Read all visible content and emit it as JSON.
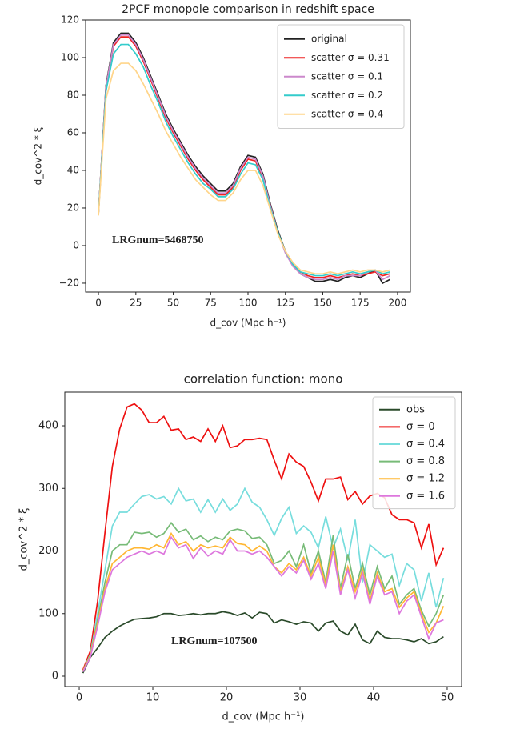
{
  "chart_data": [
    {
      "type": "line",
      "title": "2PCF monopole comparison in redshift space",
      "xlabel": "d_cov (Mpc h⁻¹)",
      "ylabel": "d_cov^2 * ξ",
      "annotation": "LRGnum=5468750",
      "x": [
        0,
        5,
        10,
        15,
        20,
        25,
        30,
        35,
        40,
        45,
        50,
        55,
        60,
        65,
        70,
        75,
        80,
        85,
        90,
        95,
        100,
        105,
        110,
        115,
        120,
        125,
        130,
        135,
        140,
        145,
        150,
        155,
        160,
        165,
        170,
        175,
        180,
        185,
        190,
        195
      ],
      "series": [
        {
          "name": "original",
          "color": "#222222",
          "values": [
            17,
            85,
            108,
            113,
            113,
            108,
            100,
            90,
            80,
            70,
            62,
            55,
            48,
            42,
            37,
            33,
            29,
            29,
            33,
            42,
            48,
            47,
            38,
            22,
            8,
            -3,
            -10,
            -15,
            -17,
            -19,
            -19,
            -18,
            -19,
            -17,
            -16,
            -17,
            -15,
            -13,
            -20,
            -18
          ]
        },
        {
          "name": "scatter σ = 0.31",
          "color": "#ee2222",
          "values": [
            17,
            84,
            106,
            111,
            111,
            106,
            98,
            88,
            78,
            68,
            60,
            53,
            46,
            40,
            35,
            31,
            27,
            27,
            31,
            40,
            46,
            45,
            36,
            21,
            7,
            -3,
            -10,
            -14,
            -16,
            -17,
            -17,
            -16,
            -17,
            -16,
            -15,
            -16,
            -15,
            -14,
            -16,
            -15
          ]
        },
        {
          "name": "scatter σ = 0.1",
          "color": "#cc88cc",
          "values": [
            17,
            84,
            107,
            112,
            112,
            107,
            99,
            89,
            79,
            69,
            61,
            54,
            47,
            41,
            36,
            32,
            28,
            28,
            32,
            41,
            47,
            46,
            37,
            21,
            7,
            -4,
            -11,
            -15,
            -17,
            -18,
            -18,
            -17,
            -18,
            -16,
            -16,
            -16,
            -14,
            -13,
            -18,
            -16
          ]
        },
        {
          "name": "scatter σ = 0.2",
          "color": "#33cccc",
          "values": [
            17,
            82,
            102,
            107,
            107,
            102,
            95,
            85,
            76,
            66,
            58,
            51,
            44,
            38,
            33,
            30,
            26,
            26,
            30,
            38,
            44,
            43,
            35,
            20,
            7,
            -3,
            -10,
            -14,
            -15,
            -16,
            -16,
            -15,
            -16,
            -15,
            -14,
            -15,
            -14,
            -13,
            -15,
            -14
          ]
        },
        {
          "name": "scatter σ = 0.4",
          "color": "#ffd58a",
          "values": [
            16,
            78,
            93,
            97,
            97,
            93,
            86,
            78,
            70,
            61,
            54,
            47,
            41,
            35,
            31,
            27,
            24,
            24,
            28,
            35,
            40,
            40,
            32,
            19,
            6,
            -3,
            -9,
            -13,
            -14,
            -15,
            -15,
            -14,
            -15,
            -14,
            -13,
            -14,
            -13,
            -13,
            -14,
            -13
          ]
        }
      ],
      "xlim": [
        -8.6,
        208.6
      ],
      "ylim": [
        -24.7,
        120
      ],
      "xticks": [
        0,
        25,
        50,
        75,
        100,
        125,
        150,
        175,
        200
      ],
      "yticks": [
        {
          "value": -20,
          "label": "−20"
        },
        0,
        20,
        40,
        60,
        80,
        100,
        120
      ],
      "legend": "upper right",
      "grid": false
    },
    {
      "type": "line",
      "title": "correlation function: mono",
      "xlabel": "d_cov (Mpc h⁻¹)",
      "ylabel": "d_cov^2 * ξ",
      "annotation": "LRGnum=107500",
      "x": [
        0.5,
        1.5,
        2.5,
        3.5,
        4.5,
        5.5,
        6.5,
        7.5,
        8.5,
        9.5,
        10.5,
        11.5,
        12.5,
        13.5,
        14.5,
        15.5,
        16.5,
        17.5,
        18.5,
        19.5,
        20.5,
        21.5,
        22.5,
        23.5,
        24.5,
        25.5,
        26.5,
        27.5,
        28.5,
        29.5,
        30.5,
        31.5,
        32.5,
        33.5,
        34.5,
        35.5,
        36.5,
        37.5,
        38.5,
        39.5,
        40.5,
        41.5,
        42.5,
        43.5,
        44.5,
        45.5,
        46.5,
        47.5,
        48.5,
        49.5
      ],
      "series": [
        {
          "name": "obs",
          "color": "#2a4a2a",
          "values": [
            5,
            30,
            45,
            62,
            72,
            80,
            86,
            91,
            92,
            93,
            95,
            100,
            100,
            97,
            98,
            100,
            98,
            100,
            100,
            103,
            101,
            97,
            101,
            93,
            102,
            100,
            85,
            90,
            87,
            83,
            87,
            85,
            72,
            85,
            88,
            72,
            66,
            83,
            58,
            52,
            72,
            62,
            60,
            60,
            58,
            55,
            60,
            52,
            55,
            63
          ]
        },
        {
          "name": "σ = 0",
          "color": "#ee1111",
          "values": [
            10,
            40,
            120,
            230,
            335,
            395,
            430,
            435,
            425,
            405,
            405,
            415,
            393,
            395,
            378,
            382,
            375,
            395,
            375,
            400,
            365,
            368,
            378,
            378,
            380,
            378,
            345,
            315,
            355,
            342,
            335,
            310,
            280,
            315,
            315,
            318,
            282,
            295,
            275,
            288,
            292,
            285,
            258,
            250,
            250,
            245,
            205,
            243,
            178,
            205
          ]
        },
        {
          "name": "σ = 0.4",
          "color": "#77dddd",
          "values": [
            8,
            35,
            100,
            170,
            240,
            262,
            262,
            275,
            287,
            290,
            283,
            287,
            275,
            300,
            280,
            283,
            262,
            282,
            262,
            283,
            265,
            275,
            300,
            278,
            270,
            250,
            225,
            252,
            270,
            228,
            240,
            230,
            205,
            255,
            205,
            235,
            185,
            250,
            150,
            210,
            200,
            190,
            195,
            145,
            180,
            170,
            120,
            165,
            110,
            157
          ]
        },
        {
          "name": "σ = 0.8",
          "color": "#77bb77",
          "values": [
            8,
            33,
            90,
            150,
            200,
            210,
            210,
            230,
            228,
            230,
            222,
            228,
            245,
            230,
            235,
            218,
            224,
            215,
            222,
            218,
            232,
            235,
            232,
            220,
            222,
            210,
            180,
            185,
            200,
            175,
            210,
            165,
            200,
            150,
            225,
            140,
            195,
            140,
            180,
            130,
            175,
            140,
            160,
            115,
            130,
            140,
            105,
            80,
            100,
            130
          ]
        },
        {
          "name": "σ = 1.2",
          "color": "#ffb733",
          "values": [
            8,
            32,
            85,
            140,
            180,
            190,
            200,
            205,
            205,
            203,
            210,
            205,
            228,
            210,
            215,
            200,
            210,
            205,
            208,
            205,
            222,
            212,
            210,
            200,
            208,
            200,
            175,
            165,
            180,
            170,
            190,
            160,
            190,
            145,
            210,
            135,
            175,
            135,
            170,
            120,
            165,
            135,
            140,
            110,
            125,
            135,
            100,
            70,
            85,
            112
          ]
        },
        {
          "name": "σ = 1.6",
          "color": "#dd77dd",
          "values": [
            7,
            30,
            80,
            135,
            170,
            180,
            190,
            195,
            200,
            195,
            200,
            195,
            222,
            205,
            210,
            188,
            205,
            192,
            200,
            195,
            218,
            200,
            200,
            195,
            200,
            190,
            175,
            160,
            175,
            165,
            185,
            155,
            180,
            140,
            200,
            130,
            170,
            125,
            165,
            115,
            160,
            130,
            135,
            100,
            120,
            130,
            95,
            60,
            85,
            90
          ]
        }
      ],
      "xlim": [
        -1.96,
        51.96
      ],
      "ylim": [
        -16.6,
        453.7
      ],
      "xticks": [
        0,
        10,
        20,
        30,
        40,
        50
      ],
      "yticks": [
        0,
        100,
        200,
        300,
        400
      ],
      "legend": "upper right",
      "grid": false
    }
  ]
}
